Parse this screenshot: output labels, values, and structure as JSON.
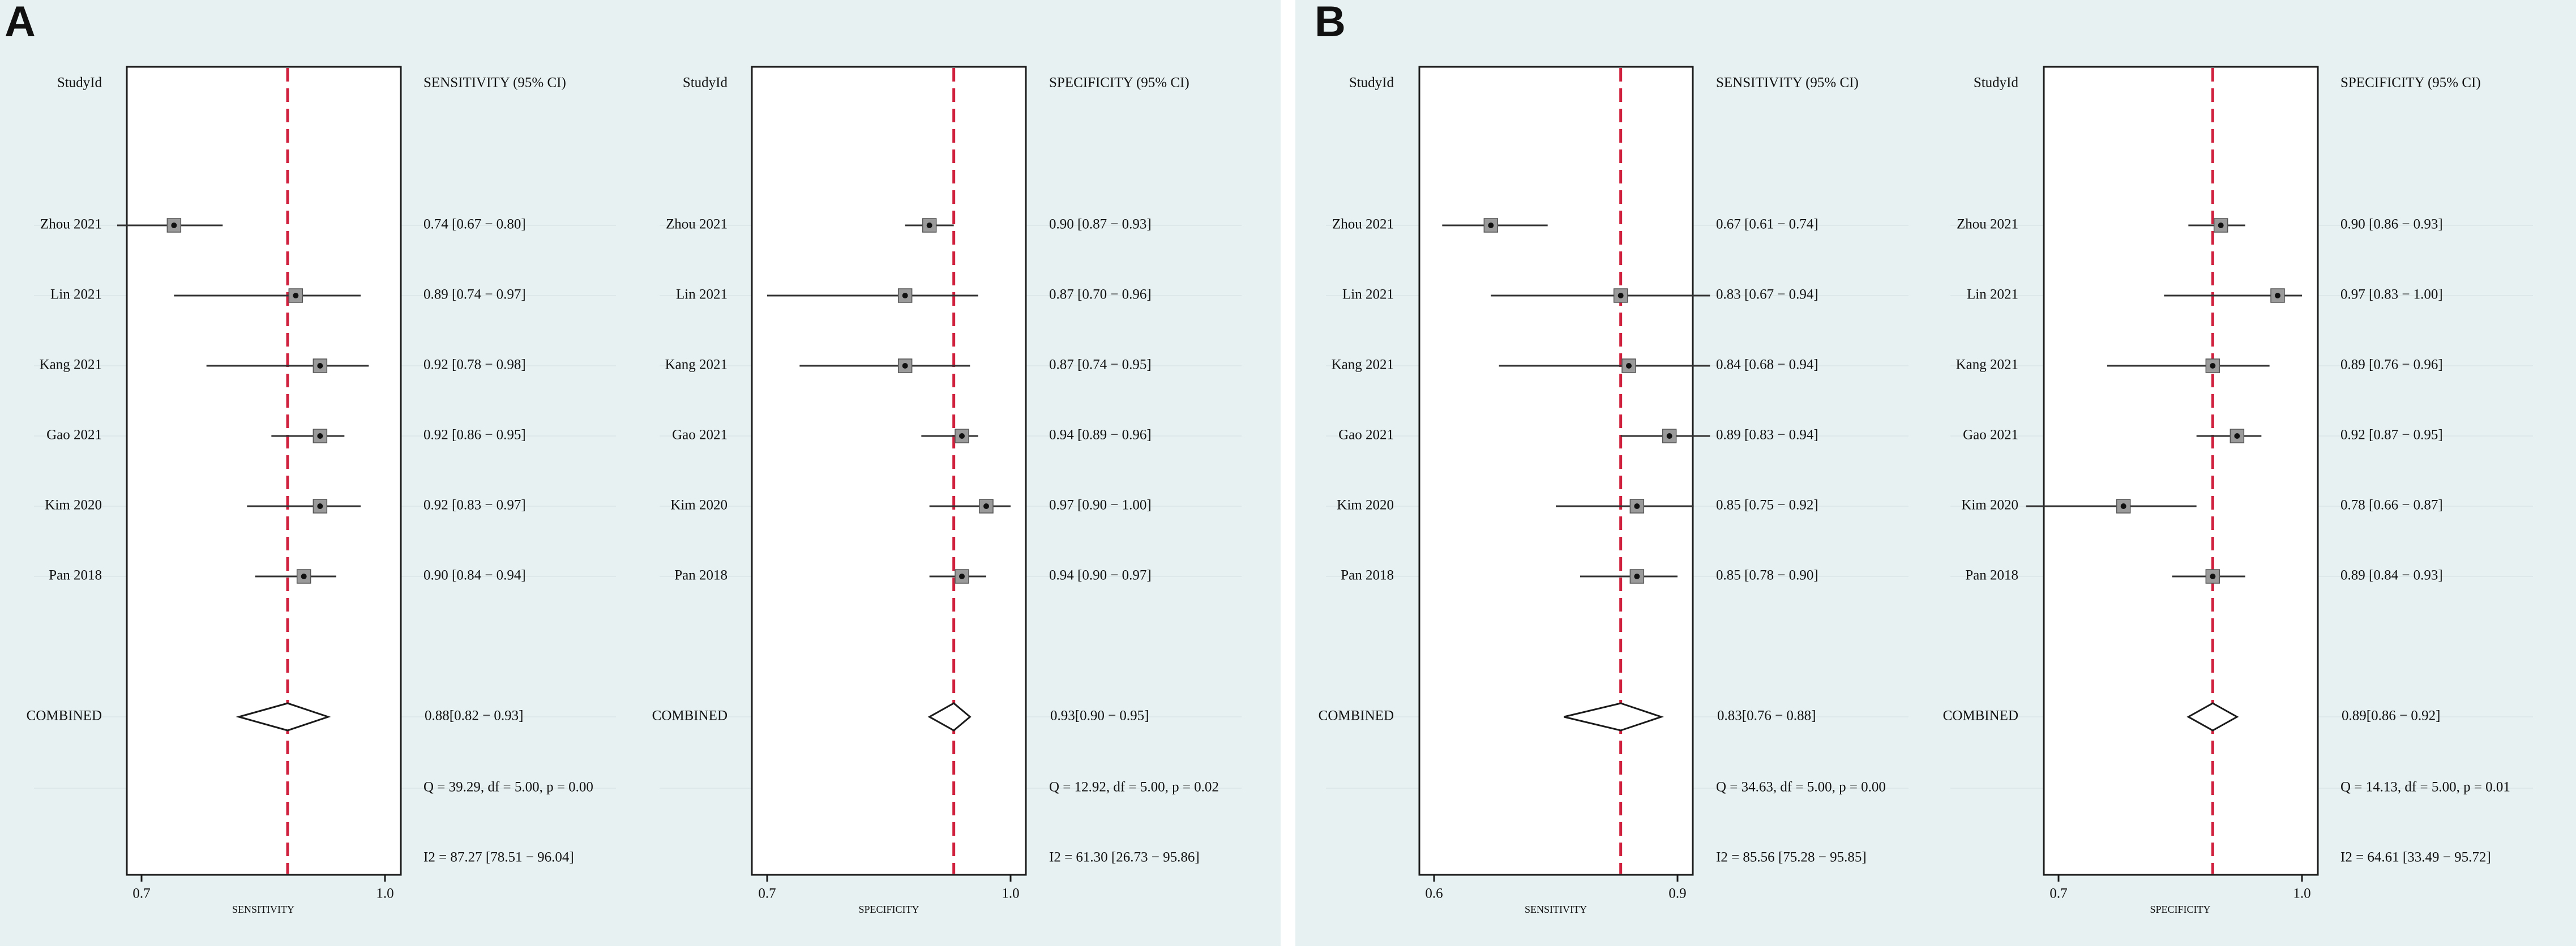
{
  "colors": {
    "panel_bg": "#e8f1f2",
    "plot_bg": "#ffffff",
    "frame": "#1a1a1a",
    "combined_line": "#d0213f",
    "marker_fill": "#9a9a9a",
    "marker_dot": "#111111",
    "ci_line": "#333333",
    "row_guide": "#dde8ea",
    "text": "#111111"
  },
  "panel_labels": [
    "A",
    "B"
  ],
  "chart_data": [
    {
      "type": "forest",
      "panel": "A",
      "studyid_label": "StudyId",
      "column_header": "SENSITIVITY (95% CI)",
      "xlabel": "SENSITIVITY",
      "xlim": [
        0.7,
        1.0
      ],
      "xticks": [
        "0.7",
        "1.0"
      ],
      "combined_ref": 0.88,
      "studies": [
        {
          "name": "Zhou 2021",
          "est": 0.74,
          "lo": 0.67,
          "hi": 0.8,
          "label": "0.74 [0.67 − 0.80]"
        },
        {
          "name": "Lin 2021",
          "est": 0.89,
          "lo": 0.74,
          "hi": 0.97,
          "label": "0.89 [0.74 − 0.97]"
        },
        {
          "name": "Kang 2021",
          "est": 0.92,
          "lo": 0.78,
          "hi": 0.98,
          "label": "0.92 [0.78 − 0.98]"
        },
        {
          "name": "Gao 2021",
          "est": 0.92,
          "lo": 0.86,
          "hi": 0.95,
          "label": "0.92 [0.86 − 0.95]"
        },
        {
          "name": "Kim 2020",
          "est": 0.92,
          "lo": 0.83,
          "hi": 0.97,
          "label": "0.92 [0.83 − 0.97]"
        },
        {
          "name": "Pan 2018",
          "est": 0.9,
          "lo": 0.84,
          "hi": 0.94,
          "label": "0.90 [0.84 − 0.94]"
        }
      ],
      "combined": {
        "name": "COMBINED",
        "est": 0.88,
        "lo": 0.82,
        "hi": 0.93,
        "label": "0.88[0.82 − 0.93]"
      },
      "q_stat": "Q = 39.29, df = 5.00, p =  0.00",
      "i2_stat": "I2 = 87.27 [78.51 − 96.04]"
    },
    {
      "type": "forest",
      "panel": "A",
      "studyid_label": "StudyId",
      "column_header": "SPECIFICITY (95% CI)",
      "xlabel": "SPECIFICITY",
      "xlim": [
        0.7,
        1.0
      ],
      "xticks": [
        "0.7",
        "1.0"
      ],
      "combined_ref": 0.93,
      "studies": [
        {
          "name": "Zhou 2021",
          "est": 0.9,
          "lo": 0.87,
          "hi": 0.93,
          "label": "0.90 [0.87 − 0.93]"
        },
        {
          "name": "Lin 2021",
          "est": 0.87,
          "lo": 0.7,
          "hi": 0.96,
          "label": "0.87 [0.70 − 0.96]"
        },
        {
          "name": "Kang 2021",
          "est": 0.87,
          "lo": 0.74,
          "hi": 0.95,
          "label": "0.87 [0.74 − 0.95]"
        },
        {
          "name": "Gao 2021",
          "est": 0.94,
          "lo": 0.89,
          "hi": 0.96,
          "label": "0.94 [0.89 − 0.96]"
        },
        {
          "name": "Kim 2020",
          "est": 0.97,
          "lo": 0.9,
          "hi": 1.0,
          "label": "0.97 [0.90 − 1.00]"
        },
        {
          "name": "Pan 2018",
          "est": 0.94,
          "lo": 0.9,
          "hi": 0.97,
          "label": "0.94 [0.90 − 0.97]"
        }
      ],
      "combined": {
        "name": "COMBINED",
        "est": 0.93,
        "lo": 0.9,
        "hi": 0.95,
        "label": "0.93[0.90 − 0.95]"
      },
      "q_stat": "Q = 12.92, df = 5.00, p =  0.02",
      "i2_stat": "I2 = 61.30 [26.73 − 95.86]"
    },
    {
      "type": "forest",
      "panel": "B",
      "studyid_label": "StudyId",
      "column_header": "SENSITIVITY (95% CI)",
      "xlabel": "SENSITIVITY",
      "xlim": [
        0.6,
        0.9
      ],
      "xticks": [
        "0.6",
        "0.9"
      ],
      "combined_ref": 0.83,
      "studies": [
        {
          "name": "Zhou 2021",
          "est": 0.67,
          "lo": 0.61,
          "hi": 0.74,
          "label": "0.67 [0.61 − 0.74]"
        },
        {
          "name": "Lin 2021",
          "est": 0.83,
          "lo": 0.67,
          "hi": 0.94,
          "label": "0.83 [0.67 − 0.94]"
        },
        {
          "name": "Kang 2021",
          "est": 0.84,
          "lo": 0.68,
          "hi": 0.94,
          "label": "0.84 [0.68 − 0.94]"
        },
        {
          "name": "Gao 2021",
          "est": 0.89,
          "lo": 0.83,
          "hi": 0.94,
          "label": "0.89 [0.83 − 0.94]"
        },
        {
          "name": "Kim 2020",
          "est": 0.85,
          "lo": 0.75,
          "hi": 0.92,
          "label": "0.85 [0.75 − 0.92]"
        },
        {
          "name": "Pan 2018",
          "est": 0.85,
          "lo": 0.78,
          "hi": 0.9,
          "label": "0.85 [0.78 − 0.90]"
        }
      ],
      "combined": {
        "name": "COMBINED",
        "est": 0.83,
        "lo": 0.76,
        "hi": 0.88,
        "label": "0.83[0.76 − 0.88]"
      },
      "q_stat": "Q = 34.63, df = 5.00, p =  0.00",
      "i2_stat": "I2 = 85.56 [75.28 − 95.85]"
    },
    {
      "type": "forest",
      "panel": "B",
      "studyid_label": "StudyId",
      "column_header": "SPECIFICITY (95% CI)",
      "xlabel": "SPECIFICITY",
      "xlim": [
        0.7,
        1.0
      ],
      "xticks": [
        "0.7",
        "1.0"
      ],
      "combined_ref": 0.89,
      "studies": [
        {
          "name": "Zhou 2021",
          "est": 0.9,
          "lo": 0.86,
          "hi": 0.93,
          "label": "0.90 [0.86 − 0.93]"
        },
        {
          "name": "Lin 2021",
          "est": 0.97,
          "lo": 0.83,
          "hi": 1.0,
          "label": "0.97 [0.83 − 1.00]"
        },
        {
          "name": "Kang 2021",
          "est": 0.89,
          "lo": 0.76,
          "hi": 0.96,
          "label": "0.89 [0.76 − 0.96]"
        },
        {
          "name": "Gao 2021",
          "est": 0.92,
          "lo": 0.87,
          "hi": 0.95,
          "label": "0.92 [0.87 − 0.95]"
        },
        {
          "name": "Kim 2020",
          "est": 0.78,
          "lo": 0.66,
          "hi": 0.87,
          "label": "0.78 [0.66 − 0.87]"
        },
        {
          "name": "Pan 2018",
          "est": 0.89,
          "lo": 0.84,
          "hi": 0.93,
          "label": "0.89 [0.84 − 0.93]"
        }
      ],
      "combined": {
        "name": "COMBINED",
        "est": 0.89,
        "lo": 0.86,
        "hi": 0.92,
        "label": "0.89[0.86 − 0.92]"
      },
      "q_stat": "Q = 14.13, df = 5.00, p =  0.01",
      "i2_stat": "I2 = 64.61 [33.49 − 95.72]"
    }
  ]
}
